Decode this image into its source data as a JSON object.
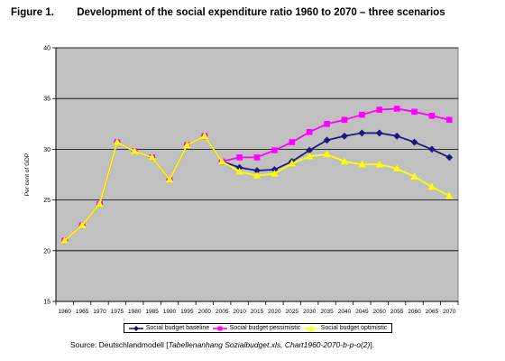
{
  "figure": {
    "label": "Figure 1.",
    "title": "Development of the social expenditure ratio 1960 to 2070 – three scenarios"
  },
  "source": {
    "prefix": "Source: Deutschlandmodell [",
    "italic": "Tabellenanhang Sozialbudget.xls, Chart1960-2070-b-p-o(2)",
    "suffix": "]."
  },
  "chart_data": {
    "type": "line",
    "ylabel": "Per cent of GDP",
    "xlabel": "",
    "ylim": [
      15,
      40
    ],
    "yticks": [
      15,
      20,
      25,
      30,
      35,
      40
    ],
    "grid": true,
    "legend_position": "bottom",
    "plot_background": "#c0c0c0",
    "categories": [
      "1960",
      "1965",
      "1970",
      "1975",
      "1980",
      "1985",
      "1990",
      "1995",
      "2000",
      "2005",
      "2010",
      "2015",
      "2020",
      "2025",
      "2030",
      "2035",
      "2040",
      "2045",
      "2050",
      "2055",
      "2060",
      "2065",
      "2070"
    ],
    "series": [
      {
        "name": "Social budget baseline",
        "color": "#1a1a7a",
        "marker": "diamond",
        "values": [
          21.0,
          22.5,
          24.6,
          30.7,
          29.8,
          29.2,
          27.0,
          30.4,
          31.3,
          28.8,
          28.2,
          27.9,
          28.0,
          28.8,
          29.9,
          30.9,
          31.3,
          31.6,
          31.6,
          31.3,
          30.7,
          30.0,
          29.2
        ]
      },
      {
        "name": "Social budget pessimistic",
        "color": "#ff00ff",
        "marker": "square",
        "values": [
          21.0,
          22.5,
          24.6,
          30.7,
          29.8,
          29.2,
          27.0,
          30.4,
          31.3,
          28.8,
          29.2,
          29.2,
          29.9,
          30.7,
          31.7,
          32.5,
          32.9,
          33.4,
          33.9,
          34.0,
          33.7,
          33.3,
          32.9
        ]
      },
      {
        "name": "Social budget optimistic",
        "color": "#ffff00",
        "marker": "triangle",
        "values": [
          21.0,
          22.5,
          24.6,
          30.7,
          29.8,
          29.2,
          27.0,
          30.4,
          31.3,
          28.8,
          27.8,
          27.4,
          27.6,
          28.6,
          29.3,
          29.5,
          28.8,
          28.5,
          28.5,
          28.1,
          27.3,
          26.3,
          25.4
        ]
      }
    ]
  }
}
